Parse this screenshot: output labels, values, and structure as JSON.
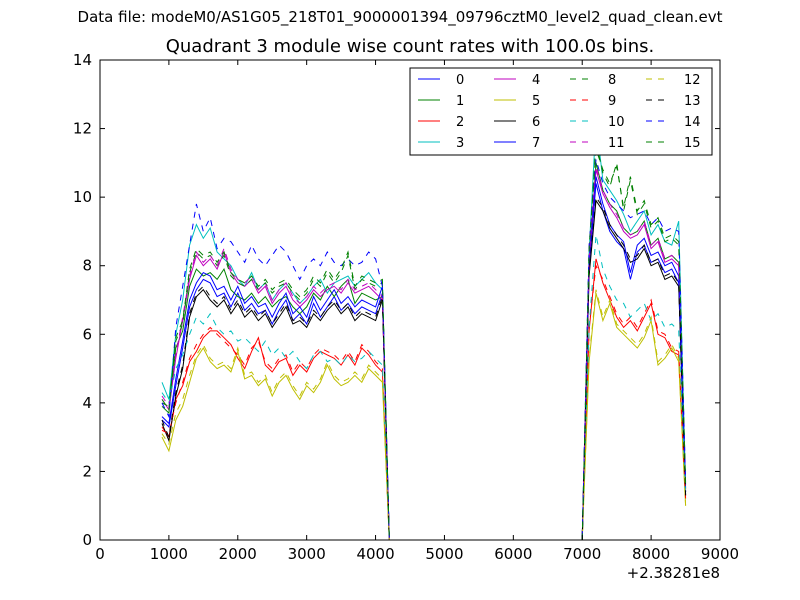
{
  "figure": {
    "suptitle": "Data file: modeM0/AS1G05_218T01_9000001394_09796cztM0_level2_quad_clean.evt",
    "title": "Quadrant 3 module wise count rates with 100.0s bins."
  },
  "chart_data": {
    "type": "line",
    "title": "Quadrant 3 module wise count rates with 100.0s bins.",
    "xlabel": "",
    "ylabel": "",
    "x_offset_label": "+2.38281e8",
    "xlim": [
      0,
      9000
    ],
    "ylim": [
      0,
      14
    ],
    "x_ticks": [
      "0",
      "1000",
      "2000",
      "3000",
      "4000",
      "5000",
      "6000",
      "7000",
      "8000",
      "9000"
    ],
    "y_ticks": [
      "0",
      "2",
      "4",
      "6",
      "8",
      "10",
      "12",
      "14"
    ],
    "grid": false,
    "legend_position": "top-right",
    "legend_columns": 4,
    "x": [
      900,
      1000,
      1100,
      1200,
      1300,
      1400,
      1500,
      1600,
      1700,
      1800,
      1900,
      2000,
      2100,
      2200,
      2300,
      2400,
      2500,
      2600,
      2700,
      2800,
      2900,
      3000,
      3100,
      3200,
      3300,
      3400,
      3500,
      3600,
      3700,
      3800,
      3900,
      4000,
      4100,
      4200,
      7000,
      7100,
      7200,
      7300,
      7400,
      7500,
      7600,
      7700,
      7800,
      7900,
      8000,
      8100,
      8200,
      8300,
      8400,
      8500
    ],
    "series": [
      {
        "name": "0",
        "color": "#0000ff",
        "dash": "solid",
        "values": [
          3.5,
          3.3,
          4.5,
          5.6,
          6.8,
          7.3,
          7.6,
          7.5,
          7.1,
          7.2,
          6.8,
          7.2,
          6.7,
          6.9,
          6.6,
          6.7,
          6.3,
          6.7,
          7.0,
          6.4,
          6.6,
          6.3,
          6.9,
          6.5,
          6.8,
          7.1,
          6.7,
          6.9,
          6.6,
          6.8,
          6.7,
          6.6,
          7.2,
          0.0,
          0.0,
          7.9,
          10.4,
          9.6,
          9.0,
          8.7,
          8.5,
          7.6,
          8.4,
          8.6,
          8.1,
          8.2,
          7.8,
          7.9,
          7.5,
          1.4
        ]
      },
      {
        "name": "1",
        "color": "#008000",
        "dash": "solid",
        "values": [
          3.9,
          3.7,
          5.6,
          6.1,
          7.4,
          7.9,
          7.7,
          7.8,
          7.6,
          7.9,
          7.3,
          7.1,
          7.0,
          7.2,
          6.9,
          7.1,
          6.8,
          7.0,
          7.1,
          6.8,
          6.6,
          6.8,
          7.2,
          7.0,
          7.4,
          7.1,
          7.4,
          7.6,
          6.9,
          7.2,
          7.1,
          7.0,
          7.1,
          0.0,
          0.0,
          8.0,
          11.0,
          10.2,
          9.8,
          9.6,
          9.1,
          8.9,
          9.0,
          9.3,
          8.6,
          8.8,
          8.2,
          8.3,
          8.1,
          1.5
        ]
      },
      {
        "name": "2",
        "color": "#ff0000",
        "dash": "solid",
        "values": [
          3.3,
          3.0,
          4.1,
          4.5,
          5.2,
          5.5,
          5.9,
          6.1,
          6.1,
          5.9,
          5.7,
          5.3,
          5.0,
          5.5,
          5.9,
          5.1,
          4.9,
          5.2,
          5.3,
          4.8,
          5.1,
          4.9,
          5.3,
          5.5,
          5.4,
          5.3,
          5.1,
          5.4,
          5.1,
          5.6,
          5.4,
          5.1,
          4.9,
          0.0,
          0.0,
          6.1,
          8.2,
          7.5,
          7.0,
          6.5,
          6.2,
          6.4,
          6.1,
          6.5,
          6.9,
          6.0,
          5.9,
          5.5,
          5.4,
          1.2
        ]
      },
      {
        "name": "3",
        "color": "#00bfbf",
        "dash": "solid",
        "values": [
          4.6,
          4.1,
          6.0,
          7.0,
          8.6,
          9.2,
          8.8,
          9.1,
          8.4,
          8.2,
          8.0,
          7.6,
          7.4,
          7.8,
          7.3,
          7.5,
          7.0,
          7.3,
          7.5,
          7.2,
          6.9,
          7.1,
          7.4,
          7.6,
          7.2,
          7.5,
          7.6,
          7.7,
          7.4,
          7.6,
          7.8,
          7.5,
          7.3,
          0.0,
          0.0,
          8.4,
          12.2,
          10.5,
          10.2,
          9.9,
          9.5,
          9.0,
          9.3,
          9.6,
          8.9,
          9.2,
          8.7,
          8.6,
          9.3,
          1.6
        ]
      },
      {
        "name": "4",
        "color": "#bf00bf",
        "dash": "solid",
        "values": [
          4.1,
          3.8,
          5.3,
          6.4,
          7.6,
          8.3,
          8.0,
          8.2,
          7.9,
          8.4,
          7.8,
          7.5,
          7.4,
          7.6,
          7.2,
          7.4,
          6.9,
          7.2,
          7.4,
          7.0,
          6.8,
          7.0,
          7.3,
          7.1,
          7.3,
          7.4,
          7.2,
          7.5,
          7.2,
          7.3,
          7.4,
          7.2,
          7.0,
          0.0,
          0.0,
          8.1,
          10.8,
          10.1,
          9.7,
          9.4,
          9.0,
          8.8,
          8.9,
          9.2,
          8.5,
          8.7,
          8.1,
          8.2,
          8.0,
          1.5
        ]
      },
      {
        "name": "5",
        "color": "#bfbf00",
        "dash": "solid",
        "values": [
          3.0,
          2.6,
          3.5,
          3.9,
          4.6,
          5.3,
          5.6,
          5.2,
          5.0,
          5.1,
          4.9,
          5.5,
          4.7,
          4.8,
          4.5,
          4.7,
          4.2,
          4.6,
          4.8,
          4.4,
          4.1,
          4.5,
          4.3,
          4.6,
          5.1,
          4.7,
          4.5,
          4.6,
          4.8,
          4.6,
          5.0,
          4.8,
          4.6,
          0.0,
          0.0,
          5.2,
          7.2,
          6.4,
          6.9,
          6.2,
          6.0,
          5.8,
          5.6,
          5.9,
          6.4,
          5.1,
          5.3,
          5.6,
          5.2,
          1.0
        ]
      },
      {
        "name": "6",
        "color": "#000000",
        "dash": "solid",
        "values": [
          3.4,
          2.9,
          4.2,
          5.0,
          6.5,
          7.1,
          7.3,
          7.0,
          6.8,
          7.0,
          6.6,
          6.9,
          6.5,
          6.7,
          6.4,
          6.6,
          6.2,
          6.5,
          6.8,
          6.3,
          6.4,
          6.2,
          6.6,
          6.4,
          6.7,
          6.9,
          6.6,
          6.8,
          6.4,
          6.6,
          6.5,
          6.4,
          7.0,
          0.0,
          0.0,
          7.7,
          9.9,
          9.6,
          9.1,
          8.8,
          8.5,
          8.1,
          8.2,
          8.5,
          8.0,
          8.1,
          7.6,
          7.7,
          7.4,
          1.3
        ]
      },
      {
        "name": "7",
        "color": "#0000ff",
        "dash": "solid",
        "values": [
          3.6,
          3.4,
          4.7,
          5.8,
          7.0,
          7.5,
          7.8,
          7.7,
          7.3,
          7.4,
          7.0,
          7.4,
          6.9,
          7.1,
          6.8,
          6.9,
          6.5,
          6.9,
          7.2,
          6.6,
          6.8,
          6.5,
          7.1,
          6.7,
          7.0,
          7.3,
          6.9,
          7.1,
          6.8,
          7.0,
          6.9,
          6.8,
          7.4,
          0.0,
          0.0,
          8.1,
          10.6,
          9.8,
          9.2,
          8.9,
          8.7,
          7.8,
          8.6,
          8.8,
          8.3,
          8.4,
          8.0,
          8.1,
          7.7,
          1.4
        ]
      },
      {
        "name": "8",
        "color": "#008000",
        "dash": "dashed",
        "values": [
          4.0,
          3.9,
          5.8,
          6.3,
          7.8,
          8.4,
          8.2,
          8.3,
          8.0,
          8.3,
          7.7,
          7.5,
          7.4,
          7.6,
          7.3,
          7.5,
          7.2,
          7.4,
          7.5,
          7.2,
          7.0,
          7.2,
          7.6,
          7.4,
          7.8,
          7.5,
          7.8,
          8.3,
          7.3,
          7.6,
          7.5,
          7.4,
          7.5,
          0.0,
          0.0,
          8.4,
          11.6,
          10.7,
          10.3,
          11.0,
          9.6,
          10.5,
          9.5,
          9.8,
          9.1,
          9.3,
          8.7,
          8.8,
          8.6,
          1.6
        ]
      },
      {
        "name": "9",
        "color": "#ff0000",
        "dash": "dashed",
        "values": [
          3.2,
          3.1,
          4.0,
          4.6,
          5.3,
          5.7,
          6.0,
          6.2,
          6.0,
          5.8,
          5.6,
          5.4,
          5.1,
          5.6,
          5.8,
          5.2,
          5.0,
          5.3,
          5.4,
          4.9,
          5.2,
          5.0,
          5.4,
          5.6,
          5.5,
          5.4,
          5.2,
          5.5,
          5.2,
          5.7,
          5.5,
          5.2,
          5.0,
          0.0,
          0.0,
          6.2,
          8.0,
          7.6,
          7.1,
          6.6,
          6.3,
          6.5,
          6.2,
          6.6,
          7.0,
          6.1,
          6.0,
          5.6,
          5.5,
          1.2
        ]
      },
      {
        "name": "10",
        "color": "#00bfbf",
        "dash": "dashed",
        "values": [
          4.3,
          4.0,
          5.0,
          5.4,
          6.0,
          6.5,
          6.3,
          6.6,
          6.2,
          6.0,
          6.1,
          5.8,
          5.9,
          5.7,
          5.5,
          5.8,
          5.4,
          5.6,
          5.3,
          5.5,
          5.2,
          5.0,
          5.4,
          5.5,
          5.2,
          5.3,
          5.1,
          5.4,
          5.2,
          5.3,
          5.5,
          5.3,
          5.1,
          0.0,
          0.0,
          6.2,
          8.9,
          7.9,
          7.4,
          7.0,
          6.9,
          6.5,
          6.7,
          6.9,
          6.4,
          6.6,
          6.2,
          6.3,
          6.1,
          1.3
        ]
      },
      {
        "name": "11",
        "color": "#bf00bf",
        "dash": "dashed",
        "values": [
          4.2,
          3.9,
          5.4,
          6.5,
          7.7,
          8.4,
          8.1,
          8.3,
          8.0,
          8.5,
          7.9,
          7.6,
          7.5,
          7.7,
          7.3,
          7.5,
          7.0,
          7.3,
          7.5,
          7.1,
          6.9,
          7.1,
          7.4,
          7.2,
          7.4,
          7.5,
          7.3,
          7.6,
          7.3,
          7.4,
          7.5,
          7.3,
          7.1,
          0.0,
          0.0,
          8.2,
          10.9,
          10.2,
          9.8,
          9.5,
          9.1,
          8.9,
          9.0,
          9.3,
          8.6,
          8.8,
          8.2,
          8.3,
          8.1,
          1.5
        ]
      },
      {
        "name": "12",
        "color": "#bfbf00",
        "dash": "dashed",
        "values": [
          3.1,
          2.8,
          3.7,
          4.1,
          4.8,
          5.4,
          5.7,
          5.3,
          5.1,
          5.2,
          5.0,
          5.6,
          4.8,
          4.9,
          4.6,
          4.8,
          4.3,
          4.7,
          4.9,
          4.5,
          4.2,
          4.6,
          4.4,
          4.7,
          5.2,
          4.8,
          4.6,
          4.7,
          4.9,
          4.7,
          5.1,
          4.9,
          4.7,
          0.0,
          0.0,
          5.3,
          7.3,
          6.5,
          7.0,
          6.3,
          6.1,
          5.9,
          5.7,
          6.0,
          6.5,
          5.2,
          5.4,
          5.7,
          5.3,
          1.0
        ]
      },
      {
        "name": "13",
        "color": "#000000",
        "dash": "dashed",
        "values": [
          3.5,
          3.0,
          4.3,
          5.1,
          6.6,
          7.2,
          7.4,
          7.1,
          6.9,
          7.1,
          6.7,
          7.0,
          6.6,
          6.8,
          6.5,
          6.7,
          6.3,
          6.6,
          6.9,
          6.4,
          6.5,
          6.3,
          6.7,
          6.5,
          6.8,
          7.0,
          6.7,
          6.9,
          6.5,
          6.7,
          6.6,
          6.5,
          7.1,
          0.0,
          0.0,
          7.8,
          10.0,
          9.7,
          9.2,
          8.9,
          8.6,
          8.2,
          8.3,
          8.6,
          8.1,
          8.2,
          7.7,
          7.8,
          7.5,
          1.3
        ]
      },
      {
        "name": "14",
        "color": "#0000ff",
        "dash": "dashed",
        "values": [
          4.0,
          3.6,
          6.2,
          7.4,
          8.6,
          9.8,
          9.0,
          9.4,
          8.5,
          8.8,
          8.7,
          8.4,
          8.1,
          8.6,
          8.2,
          8.0,
          8.3,
          8.6,
          8.4,
          8.0,
          7.6,
          8.0,
          8.2,
          8.0,
          8.4,
          8.1,
          8.0,
          8.2,
          8.0,
          8.1,
          8.4,
          8.2,
          7.4,
          0.0,
          0.0,
          8.6,
          11.1,
          10.4,
          10.0,
          9.8,
          9.6,
          9.4,
          9.5,
          9.6,
          9.2,
          9.4,
          9.0,
          9.1,
          9.0,
          1.7
        ]
      },
      {
        "name": "15",
        "color": "#008000",
        "dash": "dashed",
        "values": [
          4.1,
          3.8,
          5.9,
          6.4,
          7.9,
          8.5,
          8.3,
          8.4,
          8.1,
          8.4,
          7.8,
          7.6,
          7.5,
          7.7,
          7.4,
          7.6,
          7.3,
          7.5,
          7.6,
          7.3,
          7.1,
          7.3,
          7.7,
          7.5,
          7.9,
          7.6,
          7.9,
          8.4,
          7.4,
          7.7,
          7.6,
          7.5,
          7.6,
          0.0,
          0.0,
          8.5,
          11.4,
          10.8,
          10.4,
          10.9,
          9.7,
          10.6,
          9.6,
          9.9,
          9.2,
          9.4,
          8.8,
          8.9,
          8.7,
          1.6
        ]
      }
    ]
  }
}
